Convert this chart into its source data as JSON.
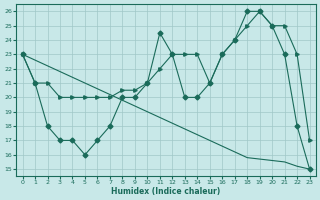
{
  "xlabel": "Humidex (Indice chaleur)",
  "bg_color": "#c8e8e8",
  "line_color": "#1a6b5a",
  "xlim": [
    -0.5,
    23.5
  ],
  "ylim": [
    14.5,
    26.5
  ],
  "xticks": [
    0,
    1,
    2,
    3,
    4,
    5,
    6,
    7,
    8,
    9,
    10,
    11,
    12,
    13,
    14,
    15,
    16,
    17,
    18,
    19,
    20,
    21,
    22,
    23
  ],
  "yticks": [
    15,
    16,
    17,
    18,
    19,
    20,
    21,
    22,
    23,
    24,
    25,
    26
  ],
  "series1_x": [
    0,
    1,
    2,
    3,
    4,
    5,
    6,
    7,
    8,
    9,
    10,
    11,
    12,
    13,
    14,
    15,
    16,
    17,
    18,
    19,
    20,
    21,
    22,
    23
  ],
  "series1_y": [
    23.0,
    22.6,
    22.2,
    21.8,
    21.4,
    21.0,
    20.6,
    20.2,
    19.8,
    19.4,
    19.0,
    18.6,
    18.2,
    17.8,
    17.4,
    17.0,
    16.6,
    16.2,
    15.8,
    15.7,
    15.6,
    15.5,
    15.2,
    15.0
  ],
  "series2_x": [
    0,
    1,
    2,
    3,
    4,
    5,
    6,
    7,
    8,
    9,
    10,
    11,
    12,
    13,
    14,
    15,
    16,
    17,
    18,
    19,
    20,
    21,
    22,
    23
  ],
  "series2_y": [
    23,
    21,
    18,
    17,
    17,
    16,
    17,
    18,
    20,
    20,
    21,
    24.5,
    23,
    20,
    20,
    21,
    23,
    24,
    26,
    26,
    25,
    23,
    18,
    15
  ],
  "series3_x": [
    0,
    1,
    2,
    3,
    4,
    5,
    6,
    7,
    8,
    9,
    10,
    11,
    12,
    13,
    14,
    15,
    16,
    17,
    18,
    19,
    20,
    21,
    22,
    23
  ],
  "series3_y": [
    23,
    21,
    21,
    20,
    20,
    20,
    20,
    20,
    20.5,
    20.5,
    21,
    22,
    23,
    23,
    23,
    21,
    23,
    24,
    25,
    26,
    25,
    25,
    23,
    17
  ]
}
